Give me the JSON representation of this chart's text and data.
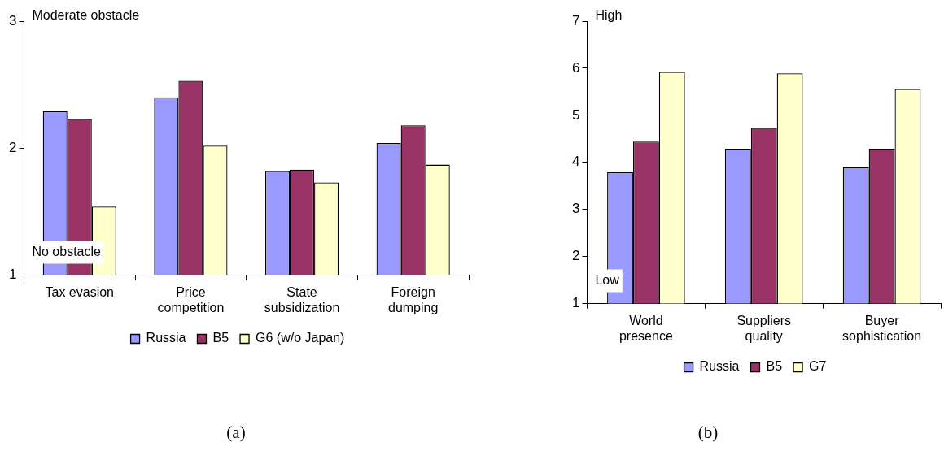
{
  "chart_data": [
    {
      "type": "bar",
      "categories": [
        "Tax evasion",
        "Price competition",
        "State subsidization",
        "Foreign dumping"
      ],
      "series": [
        {
          "name": "Russia",
          "color": "#9999ff",
          "values": [
            2.29,
            2.4,
            1.82,
            2.04
          ]
        },
        {
          "name": "B5",
          "color": "#993366",
          "values": [
            2.23,
            2.53,
            1.83,
            2.18
          ]
        },
        {
          "name": "G6 (w/o Japan)",
          "color": "#ffffcc",
          "values": [
            1.54,
            2.02,
            1.73,
            1.87
          ]
        }
      ],
      "ylim": [
        1,
        3
      ],
      "yticks": [
        1,
        2,
        3
      ],
      "grid": false,
      "legend": "bottom",
      "annotations": [
        "Moderate obstacle",
        "No obstacle",
        "(a)"
      ]
    },
    {
      "type": "bar",
      "categories": [
        "World presence",
        "Suppliers quality",
        "Buyer sophistication"
      ],
      "series": [
        {
          "name": "Russia",
          "color": "#9999ff",
          "values": [
            3.79,
            4.29,
            3.9
          ]
        },
        {
          "name": "B5",
          "color": "#993366",
          "values": [
            4.44,
            4.73,
            4.29
          ]
        },
        {
          "name": "G7",
          "color": "#ffffcc",
          "values": [
            5.92,
            5.89,
            5.56
          ]
        }
      ],
      "ylim": [
        1,
        7
      ],
      "yticks": [
        1,
        2,
        3,
        4,
        5,
        6,
        7
      ],
      "grid": false,
      "legend": "bottom",
      "annotations": [
        "High",
        "Low",
        "(b)"
      ]
    }
  ]
}
